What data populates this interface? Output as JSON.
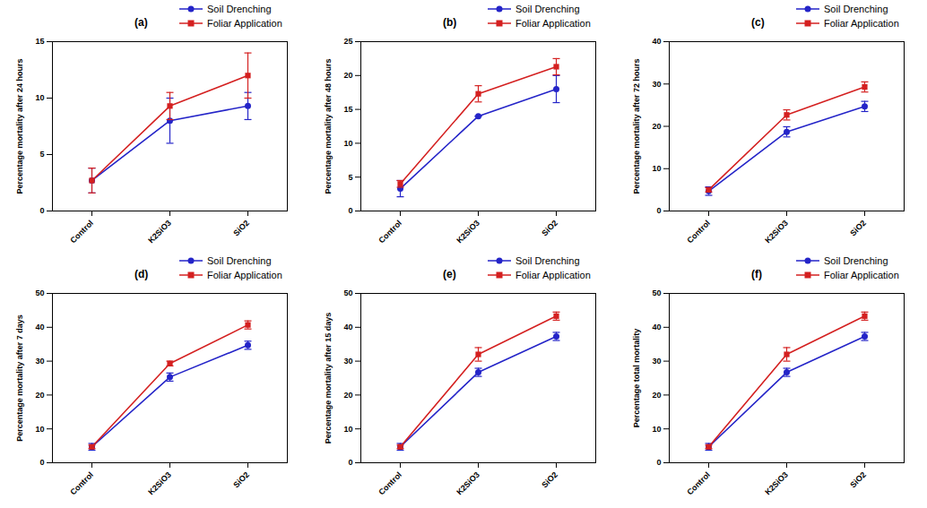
{
  "chart_data": [
    {
      "type": "line",
      "title": "(a)",
      "ylabel": "Percentage mortality after 24 hours",
      "categories": [
        "Control",
        "K2SiO3",
        "SiO2"
      ],
      "ylim": [
        0,
        15
      ],
      "yticks": [
        0,
        5,
        10,
        15
      ],
      "legend": "top",
      "series": [
        {
          "name": "Soil Drenching",
          "color": "#2424c8",
          "marker": "circle",
          "values": [
            2.7,
            8,
            9.3
          ],
          "errors": [
            1.1,
            2,
            1.2
          ]
        },
        {
          "name": "Foliar Application",
          "color": "#d42020",
          "marker": "square",
          "values": [
            2.7,
            9.3,
            12
          ],
          "errors": [
            1.1,
            1.2,
            2
          ]
        }
      ]
    },
    {
      "type": "line",
      "title": "(b)",
      "ylabel": "Percentage mortality after 48 hours",
      "categories": [
        "Control",
        "K2SiO3",
        "SiO2"
      ],
      "ylim": [
        0,
        25
      ],
      "yticks": [
        0,
        5,
        10,
        15,
        20,
        25
      ],
      "legend": "top",
      "series": [
        {
          "name": "Soil Drenching",
          "color": "#2424c8",
          "marker": "circle",
          "values": [
            3.3,
            14,
            18
          ],
          "errors": [
            1.2,
            0,
            2
          ]
        },
        {
          "name": "Foliar Application",
          "color": "#d42020",
          "marker": "square",
          "values": [
            4,
            17.3,
            21.3
          ],
          "errors": [
            0.5,
            1.2,
            1.2
          ]
        }
      ]
    },
    {
      "type": "line",
      "title": "(c)",
      "ylabel": "Percentage mortality after 72 hours",
      "categories": [
        "Control",
        "K2SiO3",
        "SiO2"
      ],
      "ylim": [
        0,
        40
      ],
      "yticks": [
        0,
        10,
        20,
        30,
        40
      ],
      "legend": "top",
      "series": [
        {
          "name": "Soil Drenching",
          "color": "#2424c8",
          "marker": "circle",
          "values": [
            4.7,
            18.7,
            24.7
          ],
          "errors": [
            1,
            1.2,
            1.2
          ]
        },
        {
          "name": "Foliar Application",
          "color": "#d42020",
          "marker": "square",
          "values": [
            5,
            22.7,
            29.3
          ],
          "errors": [
            0.5,
            1.2,
            1.2
          ]
        }
      ]
    },
    {
      "type": "line",
      "title": "(d)",
      "ylabel": "Percentage mortality after 7 days",
      "categories": [
        "Control",
        "K2SiO3",
        "SiO2"
      ],
      "ylim": [
        0,
        50
      ],
      "yticks": [
        0,
        10,
        20,
        30,
        40,
        50
      ],
      "legend": "top",
      "series": [
        {
          "name": "Soil Drenching",
          "color": "#2424c8",
          "marker": "circle",
          "values": [
            4.7,
            25.3,
            34.7
          ],
          "errors": [
            1,
            1.2,
            1.2
          ]
        },
        {
          "name": "Foliar Application",
          "color": "#d42020",
          "marker": "square",
          "values": [
            4.7,
            29.3,
            40.7
          ],
          "errors": [
            0.5,
            0.7,
            1.2
          ]
        }
      ]
    },
    {
      "type": "line",
      "title": "(e)",
      "ylabel": "Percentage mortality after 15 days",
      "categories": [
        "Control",
        "K2SiO3",
        "SiO2"
      ],
      "ylim": [
        0,
        50
      ],
      "yticks": [
        0,
        10,
        20,
        30,
        40,
        50
      ],
      "legend": "top",
      "series": [
        {
          "name": "Soil Drenching",
          "color": "#2424c8",
          "marker": "circle",
          "values": [
            4.7,
            26.7,
            37.3
          ],
          "errors": [
            1,
            1.2,
            1.2
          ]
        },
        {
          "name": "Foliar Application",
          "color": "#d42020",
          "marker": "square",
          "values": [
            4.7,
            32,
            43.3
          ],
          "errors": [
            0.5,
            2,
            1.2
          ]
        }
      ]
    },
    {
      "type": "line",
      "title": "(f)",
      "ylabel": "Percentage total mortality",
      "categories": [
        "Control",
        "K2SiO3",
        "SiO2"
      ],
      "ylim": [
        0,
        50
      ],
      "yticks": [
        0,
        10,
        20,
        30,
        40,
        50
      ],
      "legend": "top",
      "series": [
        {
          "name": "Soil Drenching",
          "color": "#2424c8",
          "marker": "circle",
          "values": [
            4.7,
            26.7,
            37.3
          ],
          "errors": [
            1,
            1.2,
            1.2
          ]
        },
        {
          "name": "Foliar Application",
          "color": "#d42020",
          "marker": "square",
          "values": [
            4.7,
            32,
            43.3
          ],
          "errors": [
            0.5,
            2,
            1.2
          ]
        }
      ]
    }
  ]
}
